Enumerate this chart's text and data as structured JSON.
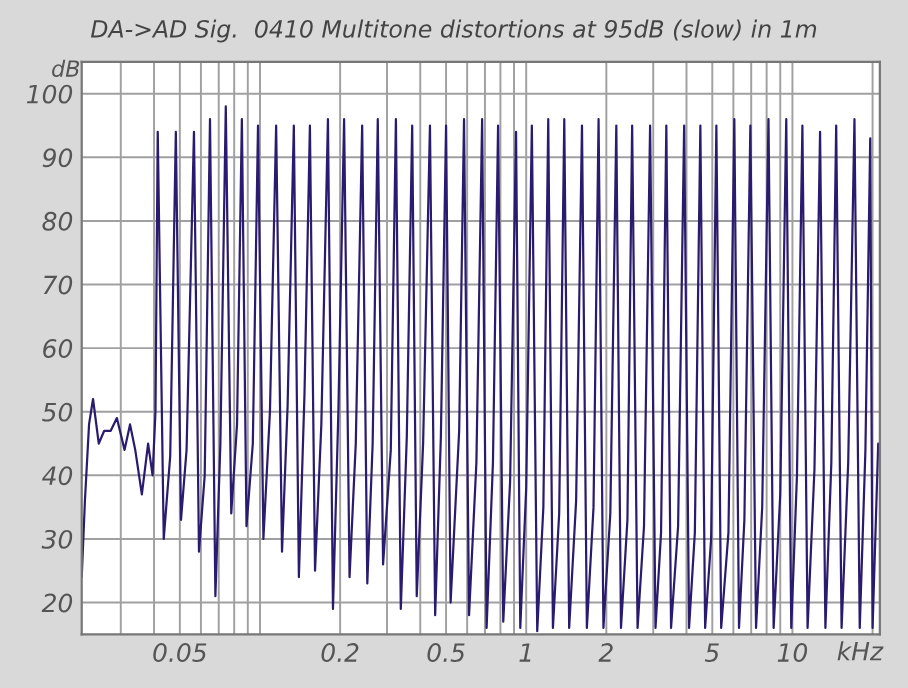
{
  "chart_data": {
    "type": "line",
    "title": "DA->AD Sig.  0410 Multitone distortions at 95dB (slow) in 1m",
    "xlabel": "kHz",
    "ylabel": "dB",
    "log": "x",
    "grid": true,
    "xlim": [
      0.0214,
      21.3
    ],
    "ylim": [
      15,
      105
    ],
    "yticks": [
      20,
      30,
      40,
      50,
      60,
      70,
      80,
      90,
      100
    ],
    "xticks": [
      {
        "value": 0.03,
        "label": null
      },
      {
        "value": 0.04,
        "label": null
      },
      {
        "value": 0.05,
        "label": "0.05"
      },
      {
        "value": 0.06,
        "label": null
      },
      {
        "value": 0.07,
        "label": null
      },
      {
        "value": 0.08,
        "label": null
      },
      {
        "value": 0.09,
        "label": null
      },
      {
        "value": 0.1,
        "label": null
      },
      {
        "value": 0.2,
        "label": "0.2"
      },
      {
        "value": 0.3,
        "label": null
      },
      {
        "value": 0.4,
        "label": null
      },
      {
        "value": 0.5,
        "label": "0.5"
      },
      {
        "value": 0.6,
        "label": null
      },
      {
        "value": 0.7,
        "label": null
      },
      {
        "value": 0.8,
        "label": null
      },
      {
        "value": 0.9,
        "label": null
      },
      {
        "value": 1,
        "label": "1"
      },
      {
        "value": 2,
        "label": "2"
      },
      {
        "value": 3,
        "label": null
      },
      {
        "value": 4,
        "label": null
      },
      {
        "value": 5,
        "label": "5"
      },
      {
        "value": 6,
        "label": null
      },
      {
        "value": 7,
        "label": null
      },
      {
        "value": 8,
        "label": null
      },
      {
        "value": 9,
        "label": null
      },
      {
        "value": 10,
        "label": "10"
      },
      {
        "value": 20,
        "label": null
      }
    ],
    "series": [
      {
        "color": "#2b1b6e",
        "x": [
          0.0214,
          0.022,
          0.0228,
          0.0236,
          0.0248,
          0.026,
          0.0275,
          0.029,
          0.031,
          0.0325,
          0.034,
          0.036,
          0.038,
          0.0395,
          0.0405,
          0.0413,
          0.0435,
          0.046,
          0.0483,
          0.0505,
          0.053,
          0.0565,
          0.059,
          0.062,
          0.0649,
          0.068,
          0.071,
          0.0744,
          0.078,
          0.082,
          0.0855,
          0.089,
          0.094,
          0.0983,
          0.103,
          0.109,
          0.115,
          0.121,
          0.127,
          0.134,
          0.14,
          0.147,
          0.154,
          0.161,
          0.17,
          0.18,
          0.188,
          0.197,
          0.207,
          0.217,
          0.229,
          0.242,
          0.253,
          0.265,
          0.277,
          0.29,
          0.31,
          0.324,
          0.338,
          0.356,
          0.373,
          0.388,
          0.41,
          0.435,
          0.455,
          0.478,
          0.5,
          0.52,
          0.56,
          0.584,
          0.61,
          0.65,
          0.683,
          0.71,
          0.75,
          0.784,
          0.82,
          0.87,
          0.916,
          0.95,
          1.0,
          1.05,
          1.1,
          1.16,
          1.21,
          1.26,
          1.33,
          1.39,
          1.45,
          1.54,
          1.62,
          1.69,
          1.79,
          1.87,
          1.95,
          2.07,
          2.18,
          2.27,
          2.4,
          2.5,
          2.62,
          2.77,
          2.92,
          3.06,
          3.21,
          3.36,
          3.5,
          3.72,
          3.92,
          4.09,
          4.3,
          4.51,
          4.7,
          4.95,
          5.18,
          5.4,
          5.75,
          6.05,
          6.3,
          6.6,
          6.95,
          7.3,
          7.7,
          8.13,
          8.5,
          9.0,
          9.48,
          9.9,
          10.4,
          10.9,
          11.4,
          12.1,
          12.7,
          13.3,
          14.0,
          14.6,
          15.3,
          16.2,
          17.1,
          17.9,
          18.8,
          19.6,
          20.0,
          21.0
        ],
        "values": [
          24,
          36,
          48,
          52,
          45,
          47,
          47,
          49,
          44,
          48,
          44,
          37,
          45,
          40,
          50,
          94,
          30,
          43,
          94,
          33,
          44,
          94,
          28,
          40,
          96,
          21,
          45,
          98,
          34,
          48,
          96,
          32,
          45,
          95,
          30,
          50,
          95,
          28,
          51,
          95,
          24,
          53,
          95,
          25,
          48,
          96,
          19,
          50,
          96,
          24,
          45,
          95,
          23,
          45,
          96,
          26,
          44,
          96,
          19,
          46,
          95,
          21,
          45,
          95,
          18,
          46,
          95,
          20,
          47,
          96,
          18,
          42,
          96,
          16,
          42,
          95,
          17,
          39,
          94,
          16,
          38,
          95,
          15.5,
          35,
          96,
          16,
          34,
          96,
          16,
          36,
          95,
          16,
          35,
          96,
          16,
          34,
          95,
          16,
          33,
          95,
          16,
          32,
          95,
          16,
          31,
          95,
          16,
          32,
          95,
          16,
          31,
          95,
          16,
          30,
          95,
          16,
          31,
          96,
          16,
          33,
          95,
          16,
          35,
          96,
          16,
          37,
          96,
          16,
          40,
          95,
          16,
          41,
          94,
          16,
          42,
          95,
          16,
          42,
          96,
          16,
          44,
          93,
          16,
          45
        ]
      }
    ]
  }
}
